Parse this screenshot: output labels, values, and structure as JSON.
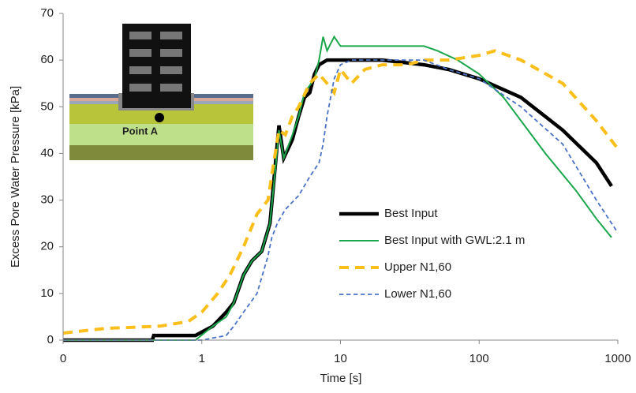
{
  "chart_data": {
    "type": "line",
    "x_label": "Time [s]",
    "y_label": "Excess Pore Water Pressure [kPa]",
    "inset_label": "Point A",
    "xscale": "log",
    "xlim": [
      0.1,
      1000
    ],
    "xticks": [
      {
        "value": 0.1,
        "label": "0"
      },
      1,
      10,
      100,
      1000
    ],
    "ylim": [
      0,
      70
    ],
    "yticks": [
      0,
      10,
      20,
      30,
      40,
      50,
      60,
      70
    ],
    "grid": false,
    "series": [
      {
        "name": "Best Input",
        "color": "#000000",
        "style": "solid",
        "width": 4.5,
        "x": [
          0.1,
          0.44,
          0.45,
          0.9,
          1.2,
          1.5,
          1.7,
          2,
          2.3,
          2.7,
          3.1,
          3.4,
          3.6,
          3.9,
          4.5,
          5,
          5.5,
          6,
          6.5,
          7,
          8,
          10,
          20,
          40,
          60,
          100,
          200,
          400,
          700,
          900
        ],
        "values": [
          0,
          0,
          1,
          1,
          3,
          6,
          8,
          14,
          17,
          19,
          25,
          38,
          46,
          39,
          43,
          48,
          52,
          53,
          57,
          59,
          60,
          60,
          60,
          59,
          58,
          56,
          52,
          45,
          38,
          33
        ]
      },
      {
        "name": "Best Input with GWL:2.1 m",
        "color": "#1aa64a",
        "style": "solid",
        "width": 2,
        "x": [
          0.1,
          0.9,
          1.2,
          1.5,
          1.7,
          2,
          2.3,
          2.7,
          3.1,
          3.4,
          3.6,
          3.9,
          4.5,
          5,
          5.5,
          6.5,
          7,
          7.5,
          8,
          9,
          10,
          15,
          20,
          40,
          50,
          70,
          100,
          150,
          300,
          500,
          700,
          900
        ],
        "values": [
          0,
          0,
          3,
          5,
          8,
          14,
          17,
          19,
          25,
          37,
          45,
          39,
          44,
          48,
          53,
          56,
          60,
          65,
          62,
          65,
          63,
          63,
          63,
          63,
          62,
          60,
          57,
          52,
          40,
          32,
          26,
          22
        ]
      },
      {
        "name": "Upper N1,60",
        "color": "#fbbf1b",
        "style": "dashed",
        "width": 4,
        "x": [
          0.1,
          0.2,
          0.5,
          0.8,
          1,
          1.3,
          1.6,
          2,
          2.5,
          3,
          3.3,
          3.6,
          4,
          4.5,
          5,
          6,
          7,
          8,
          9,
          10,
          12,
          15,
          20,
          30,
          40,
          60,
          100,
          130,
          200,
          400,
          700,
          1000
        ],
        "values": [
          1.5,
          2.5,
          3,
          4,
          6,
          10,
          14,
          20,
          27,
          30,
          38,
          45,
          44,
          48,
          50,
          55,
          57,
          55,
          53,
          58,
          55,
          58,
          59,
          59,
          60,
          60,
          61,
          62,
          60,
          55,
          47,
          41
        ]
      },
      {
        "name": "Lower N1,60",
        "color": "#4a72c4",
        "style": "dashed",
        "width": 1.8,
        "x": [
          0.1,
          1,
          1.5,
          1.7,
          2,
          2.5,
          3,
          3.2,
          3.5,
          4,
          5,
          6,
          7,
          7.5,
          8,
          9,
          10,
          12,
          20,
          40,
          60,
          100,
          200,
          400,
          700,
          1000
        ],
        "values": [
          0,
          0,
          1,
          3,
          6,
          10,
          18,
          22,
          25,
          28,
          31,
          35,
          38,
          42,
          48,
          56,
          59,
          60,
          60,
          60,
          58,
          56,
          50,
          42,
          30,
          23
        ]
      }
    ]
  }
}
